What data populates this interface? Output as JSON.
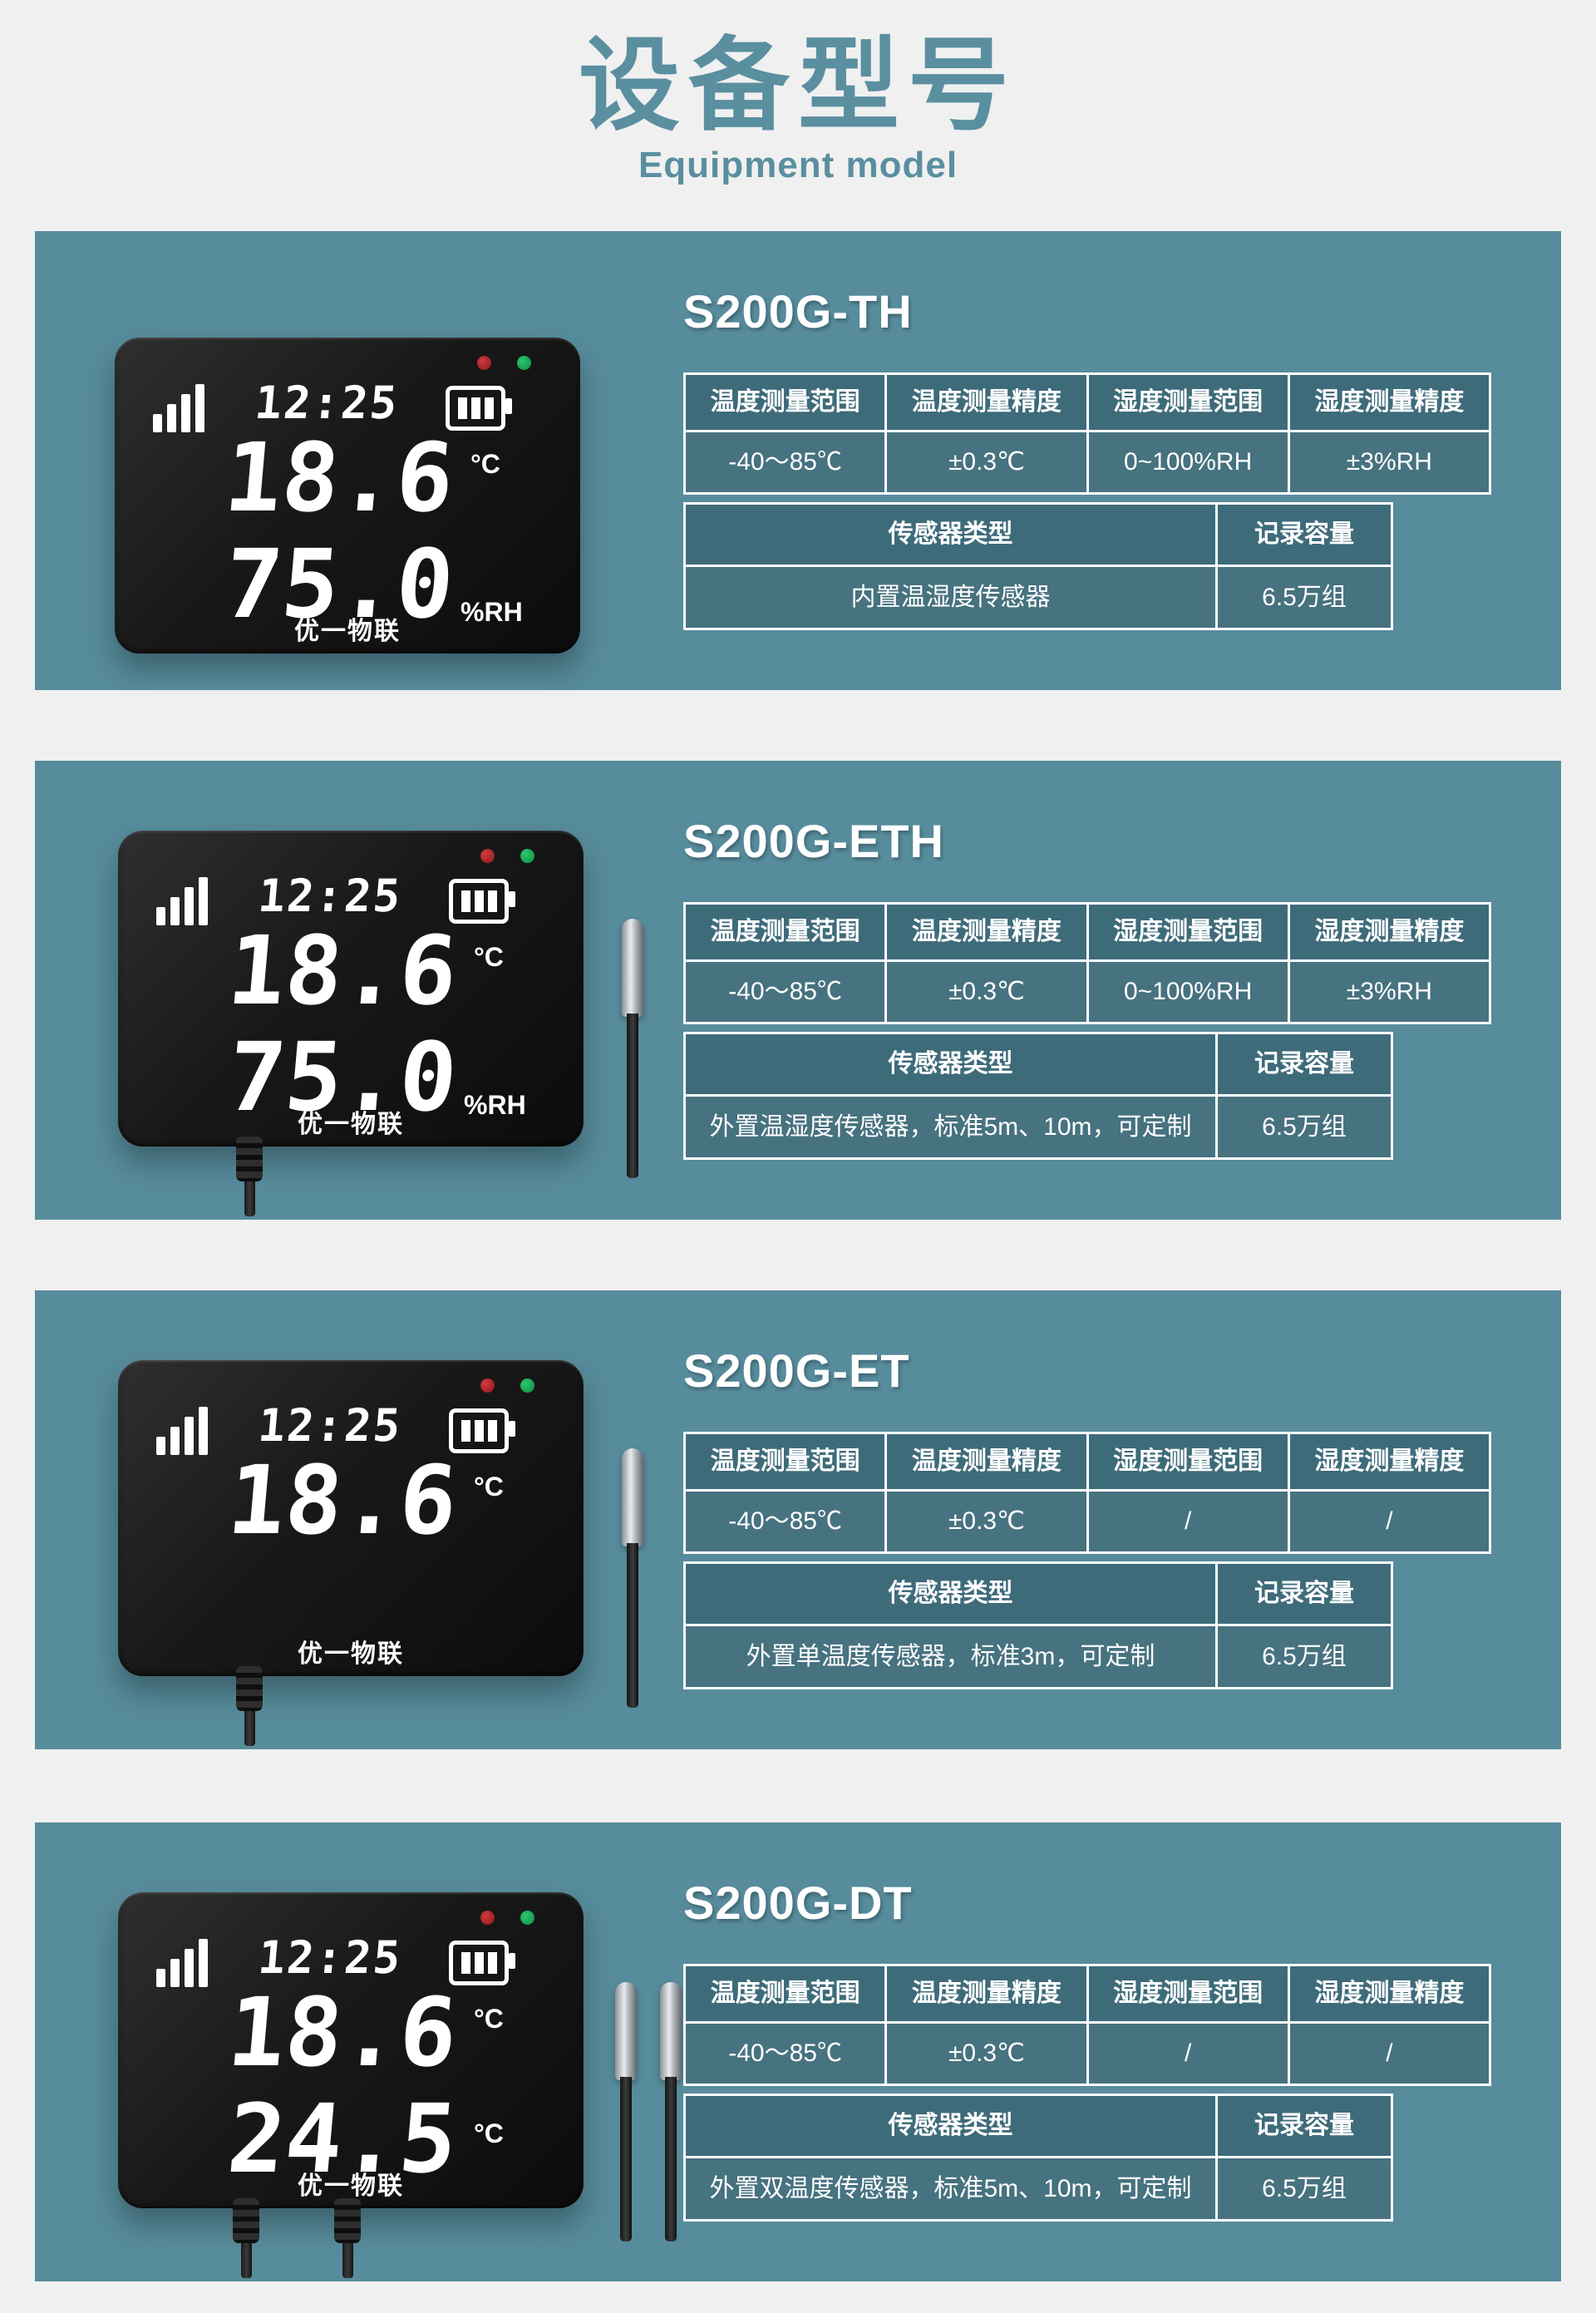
{
  "page": {
    "title_cn": "设备型号",
    "title_en": "Equipment model",
    "colors": {
      "page_bg": "#f0f0f0",
      "heading_text": "#5a8fa0",
      "panel_bg": "#578c9c",
      "table_header_bg": "#3e6b7a",
      "table_cell_bg": "#47727f",
      "table_border": "#ffffff",
      "led_red": "#a81f23",
      "led_green": "#0ea24c"
    }
  },
  "spec_labels": {
    "temp_range": "温度测量范围",
    "temp_accuracy": "温度测量精度",
    "humidity_range": "湿度测量范围",
    "humidity_accuracy": "湿度测量精度",
    "sensor_type": "传感器类型",
    "record_capacity": "记录容量"
  },
  "models": [
    {
      "name": "S200G-TH",
      "temp_range": "-40～85℃",
      "temp_accuracy": "±0.3℃",
      "humidity_range": "0~100%RH",
      "humidity_accuracy": "±3%RH",
      "sensor_type": "内置温湿度传感器",
      "record_capacity": "6.5万组",
      "display": {
        "time": "12:25",
        "row1": {
          "value": "18.6",
          "unit": "°C"
        },
        "row2": {
          "value": "75.0",
          "unit": "%RH"
        },
        "brand": "优一物联"
      }
    },
    {
      "name": "S200G-ETH",
      "temp_range": "-40～85℃",
      "temp_accuracy": "±0.3℃",
      "humidity_range": "0~100%RH",
      "humidity_accuracy": "±3%RH",
      "sensor_type": "外置温湿度传感器，标准5m、10m，可定制",
      "record_capacity": "6.5万组",
      "display": {
        "time": "12:25",
        "row1": {
          "value": "18.6",
          "unit": "°C"
        },
        "row2": {
          "value": "75.0",
          "unit": "%RH"
        },
        "brand": "优一物联"
      }
    },
    {
      "name": "S200G-ET",
      "temp_range": "-40～85℃",
      "temp_accuracy": "±0.3℃",
      "humidity_range": "/",
      "humidity_accuracy": "/",
      "sensor_type": "外置单温度传感器，标准3m，可定制",
      "record_capacity": "6.5万组",
      "display": {
        "time": "12:25",
        "row1": {
          "value": "18.6",
          "unit": "°C"
        },
        "brand": "优一物联"
      }
    },
    {
      "name": "S200G-DT",
      "temp_range": "-40～85℃",
      "temp_accuracy": "±0.3℃",
      "humidity_range": "/",
      "humidity_accuracy": "/",
      "sensor_type": "外置双温度传感器，标准5m、10m，可定制",
      "record_capacity": "6.5万组",
      "display": {
        "time": "12:25",
        "row1": {
          "value": "18.6",
          "unit": "°C"
        },
        "row2": {
          "value": "24.5",
          "unit": "°C"
        },
        "brand": "优一物联"
      }
    }
  ]
}
